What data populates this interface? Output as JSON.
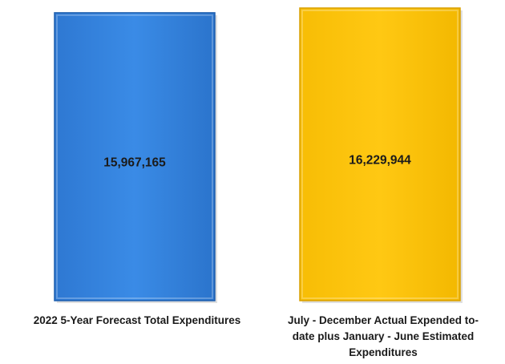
{
  "chart_data": {
    "type": "bar",
    "categories": [
      [
        "2022 5-Year Forecast Total Expenditures"
      ],
      [
        "July - December Actual Expended to-",
        "date plus January - June Estimated",
        "Expenditures"
      ]
    ],
    "values": [
      15967165,
      16229944
    ],
    "data_labels": [
      "15,967,165",
      "16,229,944"
    ],
    "colors": [
      "#2f7fd9",
      "#fec30a"
    ],
    "title": "",
    "xlabel": "",
    "ylabel": "",
    "ylim": [
      0,
      16229944
    ],
    "grid": false,
    "legend": "none"
  }
}
